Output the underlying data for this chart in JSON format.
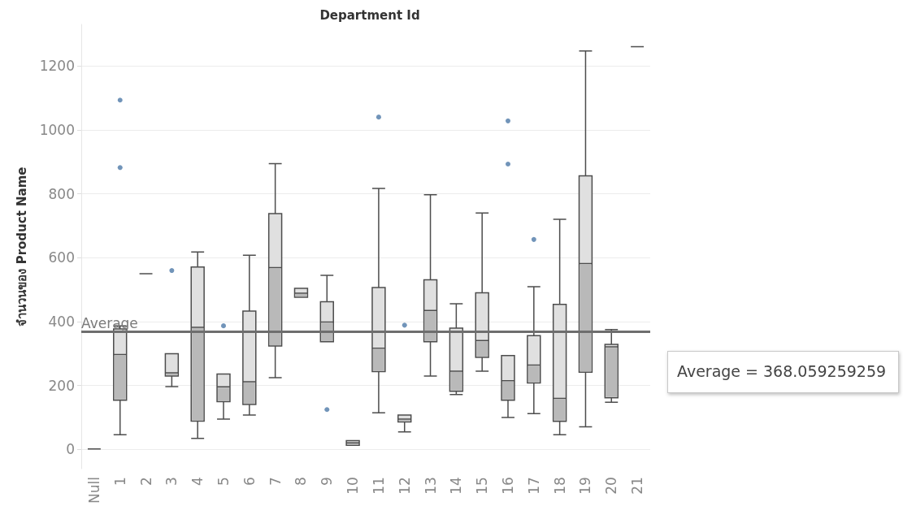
{
  "chart_data": {
    "type": "box",
    "title": "Department Id",
    "ylabel": "จำนวนของ Product Name",
    "categories": [
      "Null",
      "1",
      "2",
      "3",
      "4",
      "5",
      "6",
      "7",
      "8",
      "9",
      "10",
      "11",
      "12",
      "13",
      "14",
      "15",
      "16",
      "17",
      "18",
      "19",
      "20",
      "21"
    ],
    "boxes": [
      {
        "low": 2,
        "q1": 2,
        "median": 2,
        "q3": 2,
        "high": 2
      },
      {
        "low": 46,
        "q1": 154,
        "median": 297,
        "q3": 377,
        "high": 387,
        "outliers": [
          1093,
          882
        ]
      },
      {
        "low": 550,
        "q1": 550,
        "median": 550,
        "q3": 550,
        "high": 550
      },
      {
        "low": 197,
        "q1": 230,
        "median": 240,
        "q3": 300,
        "high": 300,
        "outliers": [
          560
        ]
      },
      {
        "low": 35,
        "q1": 89,
        "median": 382,
        "q3": 571,
        "high": 618
      },
      {
        "low": 95,
        "q1": 150,
        "median": 196,
        "q3": 236,
        "high": 236,
        "outliers": [
          387
        ]
      },
      {
        "low": 108,
        "q1": 141,
        "median": 212,
        "q3": 433,
        "high": 608
      },
      {
        "low": 225,
        "q1": 324,
        "median": 569,
        "q3": 738,
        "high": 894
      },
      {
        "low": 476,
        "q1": 476,
        "median": 489,
        "q3": 504,
        "high": 504
      },
      {
        "low": 337,
        "q1": 337,
        "median": 399,
        "q3": 462,
        "high": 545,
        "outliers": [
          125
        ]
      },
      {
        "low": 13,
        "q1": 13,
        "median": 21,
        "q3": 28,
        "high": 28
      },
      {
        "low": 115,
        "q1": 244,
        "median": 317,
        "q3": 507,
        "high": 817,
        "outliers": [
          1040
        ]
      },
      {
        "low": 55,
        "q1": 86,
        "median": 95,
        "q3": 108,
        "high": 108,
        "outliers": [
          389
        ]
      },
      {
        "low": 230,
        "q1": 337,
        "median": 435,
        "q3": 531,
        "high": 797
      },
      {
        "low": 172,
        "q1": 182,
        "median": 245,
        "q3": 380,
        "high": 456
      },
      {
        "low": 245,
        "q1": 288,
        "median": 341,
        "q3": 490,
        "high": 740
      },
      {
        "low": 100,
        "q1": 154,
        "median": 215,
        "q3": 294,
        "high": 294,
        "outliers": [
          1028,
          893
        ]
      },
      {
        "low": 112,
        "q1": 208,
        "median": 264,
        "q3": 356,
        "high": 509,
        "outliers": [
          657
        ]
      },
      {
        "low": 46,
        "q1": 88,
        "median": 160,
        "q3": 454,
        "high": 720
      },
      {
        "low": 71,
        "q1": 242,
        "median": 582,
        "q3": 856,
        "high": 1247
      },
      {
        "low": 148,
        "q1": 162,
        "median": 321,
        "q3": 329,
        "high": 375
      },
      {
        "low": 1260,
        "q1": 1260,
        "median": 1260,
        "q3": 1260,
        "high": 1260
      }
    ],
    "ylim": [
      -60,
      1330
    ],
    "yticks": [
      0,
      200,
      400,
      600,
      800,
      1000,
      1200
    ],
    "grid": "y",
    "ref_lines": [
      {
        "axis": "y",
        "value": 368.059259259,
        "label": "Average",
        "color": "#6e6e6e"
      }
    ],
    "annotations": [
      "Average = 368.059259259"
    ]
  }
}
